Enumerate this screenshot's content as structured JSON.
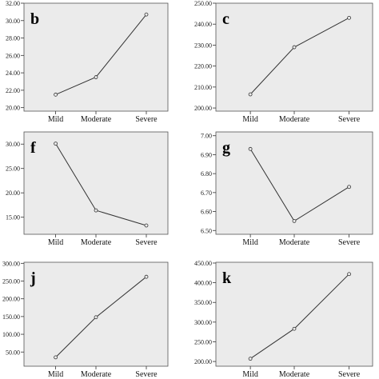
{
  "chart_data": [
    {
      "type": "line",
      "panel_label": "b",
      "categories": [
        "Mild",
        "Moderate",
        "Severe"
      ],
      "values": [
        21.5,
        23.5,
        30.7
      ],
      "ylim": [
        19.6,
        32.0
      ],
      "yticks": [
        "20.00",
        "22.00",
        "24.00",
        "26.00",
        "28.00",
        "30.00",
        "32.00"
      ],
      "ytick_values": [
        20,
        22,
        24,
        26,
        28,
        30,
        32
      ]
    },
    {
      "type": "line",
      "panel_label": "c",
      "categories": [
        "Mild",
        "Moderate",
        "Severe"
      ],
      "values": [
        206.5,
        229.0,
        243.0
      ],
      "ylim": [
        198.5,
        250.0
      ],
      "yticks": [
        "200.00",
        "210.00",
        "220.00",
        "230.00",
        "240.00",
        "250.00"
      ],
      "ytick_values": [
        200,
        210,
        220,
        230,
        240,
        250
      ]
    },
    {
      "type": "line",
      "panel_label": "f",
      "categories": [
        "Mild",
        "Moderate",
        "Severe"
      ],
      "values": [
        30.1,
        16.4,
        13.3
      ],
      "ylim": [
        11.5,
        32.5
      ],
      "yticks": [
        "15.00",
        "20.00",
        "25.00",
        "30.00"
      ],
      "ytick_values": [
        15,
        20,
        25,
        30
      ]
    },
    {
      "type": "line",
      "panel_label": "g",
      "categories": [
        "Mild",
        "Moderate",
        "Severe"
      ],
      "values": [
        6.93,
        6.55,
        6.73
      ],
      "ylim": [
        6.48,
        7.02
      ],
      "yticks": [
        "6.50",
        "6.60",
        "6.70",
        "6.80",
        "6.90",
        "7.00"
      ],
      "ytick_values": [
        6.5,
        6.6,
        6.7,
        6.8,
        6.9,
        7.0
      ]
    },
    {
      "type": "line",
      "panel_label": "j",
      "categories": [
        "Mild",
        "Moderate",
        "Severe"
      ],
      "values": [
        35.0,
        148.0,
        262.0
      ],
      "ylim": [
        10.0,
        303.0
      ],
      "yticks": [
        "50.00",
        "100.00",
        "150.00",
        "200.00",
        "250.00",
        "300.00"
      ],
      "ytick_values": [
        50,
        100,
        150,
        200,
        250,
        300
      ]
    },
    {
      "type": "line",
      "panel_label": "k",
      "categories": [
        "Mild",
        "Moderate",
        "Severe"
      ],
      "values": [
        207.0,
        283.0,
        422.0
      ],
      "ylim": [
        188.0,
        452.0
      ],
      "yticks": [
        "200.00",
        "250.00",
        "300.00",
        "350.00",
        "400.00",
        "450.00"
      ],
      "ytick_values": [
        200,
        250,
        300,
        350,
        400,
        450
      ]
    }
  ]
}
